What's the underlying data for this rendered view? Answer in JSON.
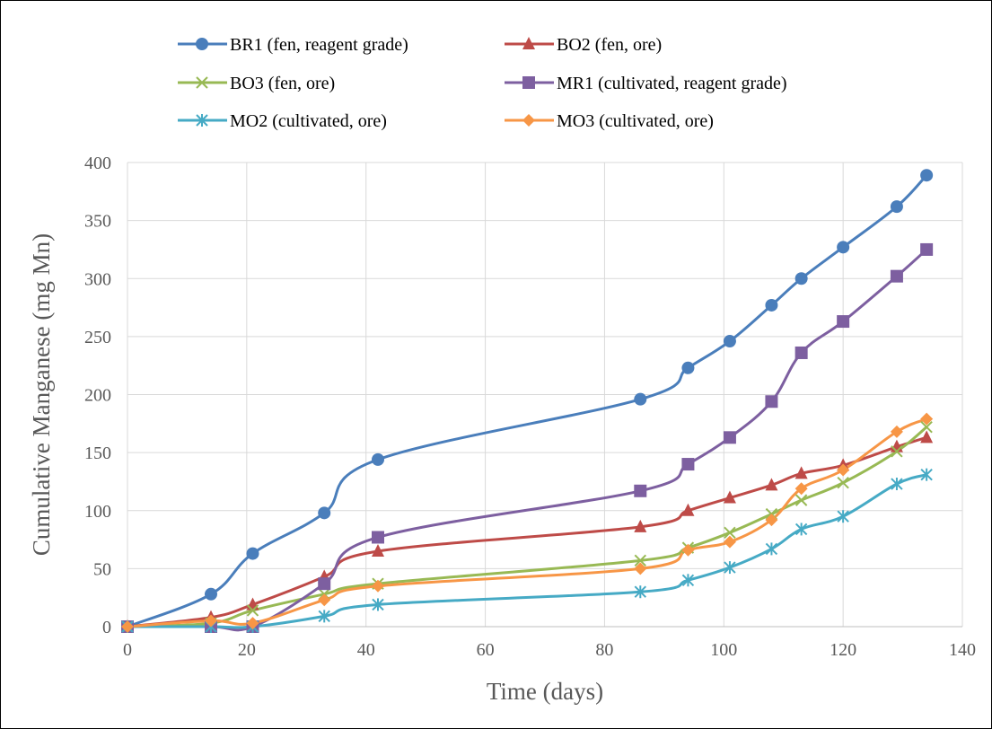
{
  "chart_data": {
    "type": "line",
    "xlabel": "Time (days)",
    "ylabel": "Cumulative Manganese (mg Mn)",
    "xlim": [
      0,
      140
    ],
    "ylim": [
      0,
      400
    ],
    "xticks": [
      0,
      20,
      40,
      60,
      80,
      100,
      120,
      140
    ],
    "yticks": [
      0,
      50,
      100,
      150,
      200,
      250,
      300,
      350,
      400
    ],
    "grid": true,
    "legend_position": "top",
    "x": [
      0,
      14,
      21,
      33,
      42,
      86,
      94,
      101,
      108,
      113,
      120,
      129,
      134
    ],
    "series": [
      {
        "name": "BR1 (fen, reagent grade)",
        "color": "#4a7ebb",
        "marker": "circle",
        "values": [
          0,
          28,
          63,
          98,
          144,
          196,
          223,
          246,
          277,
          300,
          327,
          362,
          389
        ]
      },
      {
        "name": "BO2 (fen, ore)",
        "color": "#be4b48",
        "marker": "triangle",
        "values": [
          0,
          8,
          19,
          43,
          65,
          86,
          100,
          111,
          122,
          132,
          139,
          155,
          163
        ]
      },
      {
        "name": "BO3 (fen, ore)",
        "color": "#98b954",
        "marker": "x",
        "values": [
          0,
          3,
          14,
          28,
          37,
          57,
          68,
          81,
          97,
          109,
          124,
          151,
          172
        ]
      },
      {
        "name": "MR1 (cultivated, reagent grade)",
        "color": "#7d5fa0",
        "marker": "square",
        "values": [
          0,
          0,
          0,
          37,
          77,
          117,
          140,
          163,
          194,
          236,
          263,
          302,
          325
        ]
      },
      {
        "name": "MO2 (cultivated, ore)",
        "color": "#46aac5",
        "marker": "star",
        "values": [
          0,
          0,
          0,
          9,
          19,
          30,
          40,
          51,
          67,
          84,
          95,
          123,
          131
        ]
      },
      {
        "name": "MO3 (cultivated, ore)",
        "color": "#f79646",
        "marker": "diamond",
        "values": [
          0,
          5,
          3,
          23,
          35,
          50,
          66,
          73,
          92,
          119,
          135,
          168,
          179
        ]
      }
    ]
  }
}
